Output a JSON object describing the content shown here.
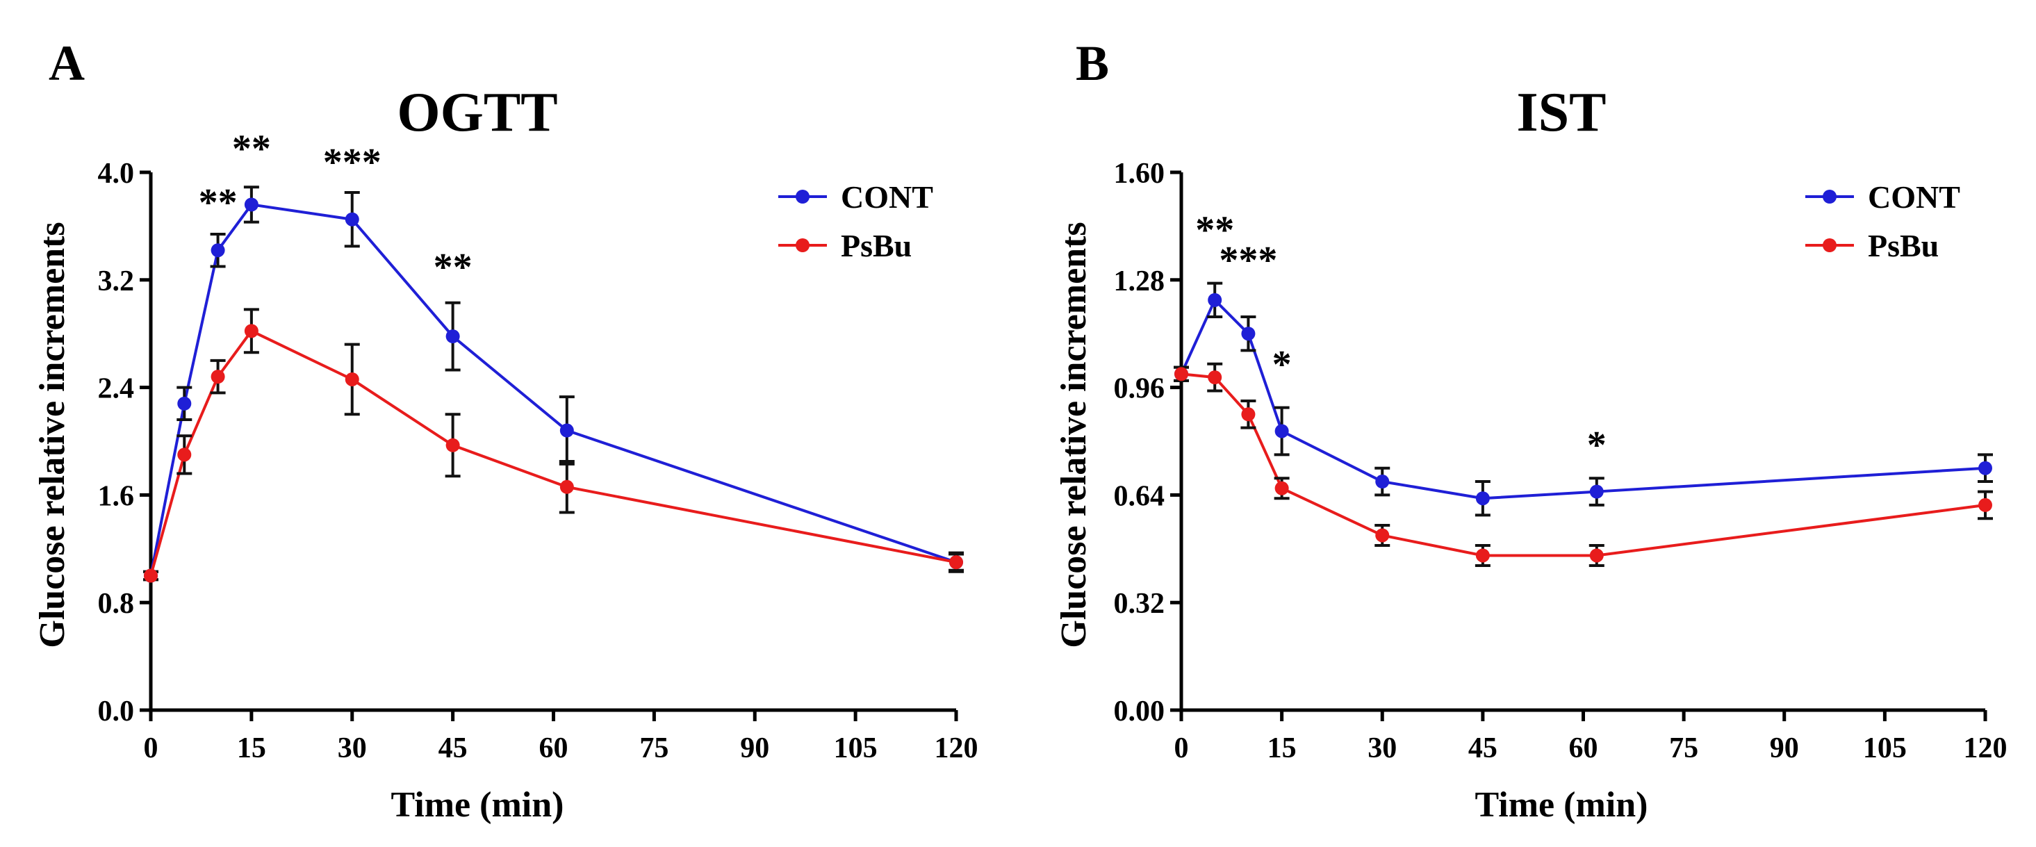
{
  "chart_data": [
    {
      "panel": "A",
      "type": "line",
      "title": "OGTT",
      "xlabel": "Time (min)",
      "ylabel": "Glucose relative increments",
      "xlim": [
        0,
        120
      ],
      "ylim": [
        0,
        4.0
      ],
      "xticks": [
        0,
        15,
        30,
        45,
        60,
        75,
        90,
        105,
        120
      ],
      "xtick_labels": [
        "0",
        "15",
        "30",
        "45",
        "60",
        "75",
        "90",
        "105",
        "120"
      ],
      "yticks": [
        0,
        0.8,
        1.6,
        2.4,
        3.2,
        4.0
      ],
      "ytick_labels": [
        "0.0",
        "0.8",
        "1.6",
        "2.4",
        "3.2",
        "4.0"
      ],
      "legend_position": "top-right",
      "series": [
        {
          "name": "CONT",
          "color": "#1f1fd6",
          "x": [
            0,
            5,
            10,
            15,
            30,
            45,
            62,
            120
          ],
          "y": [
            1.0,
            2.28,
            3.42,
            3.76,
            3.65,
            2.78,
            2.08,
            1.1
          ],
          "err": [
            0.03,
            0.12,
            0.12,
            0.13,
            0.2,
            0.25,
            0.25,
            0.07
          ]
        },
        {
          "name": "PsBu",
          "color": "#e81c1c",
          "x": [
            0,
            5,
            10,
            15,
            30,
            45,
            62,
            120
          ],
          "y": [
            1.0,
            1.9,
            2.48,
            2.82,
            2.46,
            1.97,
            1.66,
            1.1
          ],
          "err": [
            0.03,
            0.14,
            0.12,
            0.16,
            0.26,
            0.23,
            0.19,
            0.06
          ]
        }
      ],
      "annotations": [
        {
          "text": "**",
          "x": 10,
          "y": 3.68
        },
        {
          "text": "**",
          "x": 15,
          "y": 4.08
        },
        {
          "text": "***",
          "x": 30,
          "y": 3.98
        },
        {
          "text": "**",
          "x": 45,
          "y": 3.2
        }
      ]
    },
    {
      "panel": "B",
      "type": "line",
      "title": "IST",
      "xlabel": "Time (min)",
      "ylabel": "Glucose relative increments",
      "xlim": [
        0,
        120
      ],
      "ylim": [
        0,
        1.6
      ],
      "xticks": [
        0,
        15,
        30,
        45,
        60,
        75,
        90,
        105,
        120
      ],
      "xtick_labels": [
        "0",
        "15",
        "30",
        "45",
        "60",
        "75",
        "90",
        "105",
        "120"
      ],
      "yticks": [
        0,
        0.32,
        0.64,
        0.96,
        1.28,
        1.6
      ],
      "ytick_labels": [
        "0.00",
        "0.32",
        "0.64",
        "0.96",
        "1.28",
        "1.60"
      ],
      "legend_position": "top-right",
      "series": [
        {
          "name": "CONT",
          "color": "#1f1fd6",
          "x": [
            0,
            5,
            10,
            15,
            30,
            45,
            62,
            120
          ],
          "y": [
            1.0,
            1.22,
            1.12,
            0.83,
            0.68,
            0.63,
            0.65,
            0.72
          ],
          "err": [
            0.02,
            0.05,
            0.05,
            0.07,
            0.04,
            0.05,
            0.04,
            0.04
          ]
        },
        {
          "name": "PsBu",
          "color": "#e81c1c",
          "x": [
            0,
            5,
            10,
            15,
            30,
            45,
            62,
            120
          ],
          "y": [
            1.0,
            0.99,
            0.88,
            0.66,
            0.52,
            0.46,
            0.46,
            0.61
          ],
          "err": [
            0.02,
            0.04,
            0.04,
            0.03,
            0.03,
            0.03,
            0.03,
            0.04
          ]
        }
      ],
      "annotations": [
        {
          "text": "**",
          "x": 5,
          "y": 1.39
        },
        {
          "text": "***",
          "x": 10,
          "y": 1.3
        },
        {
          "text": "*",
          "x": 15,
          "y": 0.99
        },
        {
          "text": "*",
          "x": 62,
          "y": 0.75
        }
      ]
    }
  ],
  "panel_letters": [
    "A",
    "B"
  ]
}
